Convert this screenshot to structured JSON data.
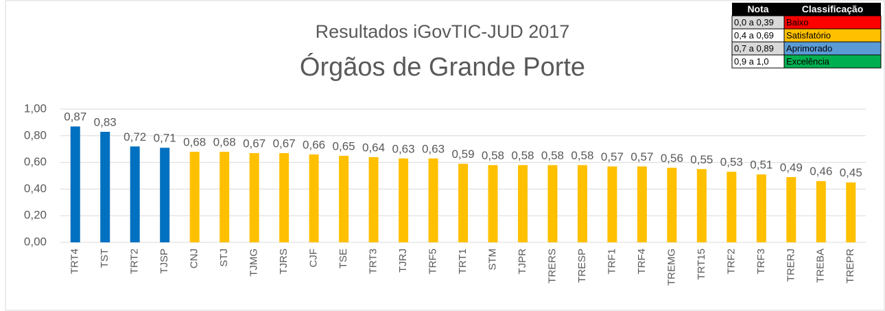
{
  "chart_data": {
    "type": "bar",
    "title": "Resultados iGovTIC-JUD 2017",
    "subtitle": "Órgãos de Grande Porte",
    "categories": [
      "TRT4",
      "TST",
      "TRT2",
      "TJSP",
      "CNJ",
      "STJ",
      "TJMG",
      "TJRS",
      "CJF",
      "TSE",
      "TRT3",
      "TJRJ",
      "TRF5",
      "TRT1",
      "STM",
      "TJPR",
      "TRERS",
      "TRESP",
      "TRF1",
      "TRF4",
      "TREMG",
      "TRT15",
      "TRF2",
      "TRF3",
      "TRERJ",
      "TREBA",
      "TREPR"
    ],
    "values": [
      0.87,
      0.83,
      0.72,
      0.71,
      0.68,
      0.68,
      0.67,
      0.67,
      0.66,
      0.65,
      0.64,
      0.63,
      0.63,
      0.59,
      0.58,
      0.58,
      0.58,
      0.58,
      0.57,
      0.57,
      0.56,
      0.55,
      0.53,
      0.51,
      0.49,
      0.46,
      0.45
    ],
    "value_labels": [
      "0,87",
      "0,83",
      "0,72",
      "0,71",
      "0,68",
      "0,68",
      "0,67",
      "0,67",
      "0,66",
      "0,65",
      "0,64",
      "0,63",
      "0,63",
      "0,59",
      "0,58",
      "0,58",
      "0,58",
      "0,58",
      "0,57",
      "0,57",
      "0,56",
      "0,55",
      "0,53",
      "0,51",
      "0,49",
      "0,46",
      "0,45"
    ],
    "colors": [
      "#0070c0",
      "#0070c0",
      "#0070c0",
      "#0070c0",
      "#ffc000",
      "#ffc000",
      "#ffc000",
      "#ffc000",
      "#ffc000",
      "#ffc000",
      "#ffc000",
      "#ffc000",
      "#ffc000",
      "#ffc000",
      "#ffc000",
      "#ffc000",
      "#ffc000",
      "#ffc000",
      "#ffc000",
      "#ffc000",
      "#ffc000",
      "#ffc000",
      "#ffc000",
      "#ffc000",
      "#ffc000",
      "#ffc000",
      "#ffc000"
    ],
    "ylim": [
      0,
      1
    ],
    "yticks": [
      {
        "value": 0,
        "label": "0,00"
      },
      {
        "value": 0.2,
        "label": "0,20"
      },
      {
        "value": 0.4,
        "label": "0,40"
      },
      {
        "value": 0.6,
        "label": "0,60"
      },
      {
        "value": 0.8,
        "label": "0,80"
      },
      {
        "value": 1,
        "label": "1,00"
      }
    ],
    "legend_table": {
      "header": [
        "Nota",
        "Classificação"
      ],
      "rows": [
        {
          "range": "0,0 a 0,39",
          "class": "Baixo",
          "color": "#ff0000"
        },
        {
          "range": "0,4 a 0,69",
          "class": "Satisfatório",
          "color": "#ffc000"
        },
        {
          "range": "0,7 a 0,89",
          "class": "Aprimorado",
          "color": "#5b9bd5"
        },
        {
          "range": "0,9 a 1,0",
          "class": "Excelência",
          "color": "#00b050"
        }
      ]
    }
  }
}
